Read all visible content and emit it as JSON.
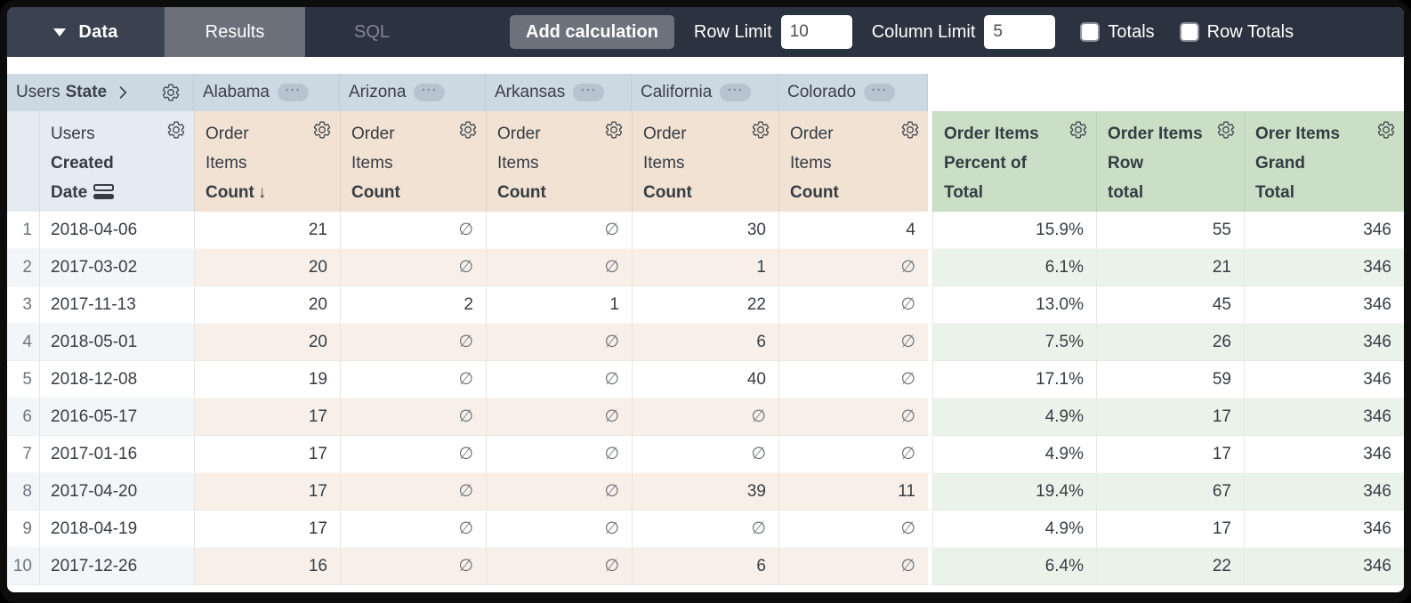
{
  "toolbar": {
    "data_section_label": "Data",
    "tabs": [
      {
        "label": "Results",
        "active": true
      },
      {
        "label": "SQL",
        "active": false
      }
    ],
    "add_calculation_label": "Add calculation",
    "row_limit": {
      "label": "Row Limit",
      "value": "10"
    },
    "column_limit": {
      "label": "Column Limit",
      "value": "5"
    },
    "totals": {
      "label": "Totals",
      "checked": false
    },
    "row_totals": {
      "label": "Row Totals",
      "checked": false
    }
  },
  "pivot_header": {
    "dimension_view": "Users",
    "dimension_field": "State",
    "values": [
      "Alabama",
      "Arizona",
      "Arkansas",
      "California",
      "Colorado"
    ]
  },
  "column_headers": {
    "row_dimension": {
      "view": "Users",
      "field_line1": "Created",
      "field_line2": "Date"
    },
    "measure": {
      "view_line1": "Order",
      "view_line2": "Items",
      "field": "Count"
    },
    "calcs": [
      {
        "line1": "Order Items",
        "line2": "Percent of",
        "line3": "Total"
      },
      {
        "line1": "Order Items",
        "line2": "Row",
        "line3": "total"
      },
      {
        "line1": "Orer Items",
        "line2": "Grand",
        "line3": "Total"
      }
    ]
  },
  "null_symbol": "∅",
  "icons": {
    "dropdown": "triangle-down",
    "ellipsis": "···",
    "sort_desc": "↓"
  },
  "rows": [
    {
      "num": "1",
      "date": "2018-04-06",
      "values": [
        "21",
        "∅",
        "∅",
        "30",
        "4"
      ],
      "percent_of_total": "15.9%",
      "row_total": "55",
      "grand_total": "346"
    },
    {
      "num": "2",
      "date": "2017-03-02",
      "values": [
        "20",
        "∅",
        "∅",
        "1",
        "∅"
      ],
      "percent_of_total": "6.1%",
      "row_total": "21",
      "grand_total": "346"
    },
    {
      "num": "3",
      "date": "2017-11-13",
      "values": [
        "20",
        "2",
        "1",
        "22",
        "∅"
      ],
      "percent_of_total": "13.0%",
      "row_total": "45",
      "grand_total": "346"
    },
    {
      "num": "4",
      "date": "2018-05-01",
      "values": [
        "20",
        "∅",
        "∅",
        "6",
        "∅"
      ],
      "percent_of_total": "7.5%",
      "row_total": "26",
      "grand_total": "346"
    },
    {
      "num": "5",
      "date": "2018-12-08",
      "values": [
        "19",
        "∅",
        "∅",
        "40",
        "∅"
      ],
      "percent_of_total": "17.1%",
      "row_total": "59",
      "grand_total": "346"
    },
    {
      "num": "6",
      "date": "2016-05-17",
      "values": [
        "17",
        "∅",
        "∅",
        "∅",
        "∅"
      ],
      "percent_of_total": "4.9%",
      "row_total": "17",
      "grand_total": "346"
    },
    {
      "num": "7",
      "date": "2017-01-16",
      "values": [
        "17",
        "∅",
        "∅",
        "∅",
        "∅"
      ],
      "percent_of_total": "4.9%",
      "row_total": "17",
      "grand_total": "346"
    },
    {
      "num": "8",
      "date": "2017-04-20",
      "values": [
        "17",
        "∅",
        "∅",
        "39",
        "11"
      ],
      "percent_of_total": "19.4%",
      "row_total": "67",
      "grand_total": "346"
    },
    {
      "num": "9",
      "date": "2018-04-19",
      "values": [
        "17",
        "∅",
        "∅",
        "∅",
        "∅"
      ],
      "percent_of_total": "4.9%",
      "row_total": "17",
      "grand_total": "346"
    },
    {
      "num": "10",
      "date": "2017-12-26",
      "values": [
        "16",
        "∅",
        "∅",
        "6",
        "∅"
      ],
      "percent_of_total": "6.4%",
      "row_total": "22",
      "grand_total": "346"
    }
  ],
  "colors": {
    "topbar_bg": "#2B3240",
    "data_block_bg": "#3A4150",
    "active_tab_bg": "#6B707A",
    "button_bg": "#6C727C",
    "pivot_header_bg": "#CDD9E2",
    "dimension_header_bg": "#E4ECF2",
    "measure_header_bg": "#F1E2D3",
    "calc_header_bg": "#CADFC6",
    "even_row_dimension": "#F3F6F9",
    "even_row_measure": "#F8F0E8",
    "even_row_calc": "#EAF3EA",
    "text": "#363D45",
    "muted_text": "#6D767F"
  }
}
